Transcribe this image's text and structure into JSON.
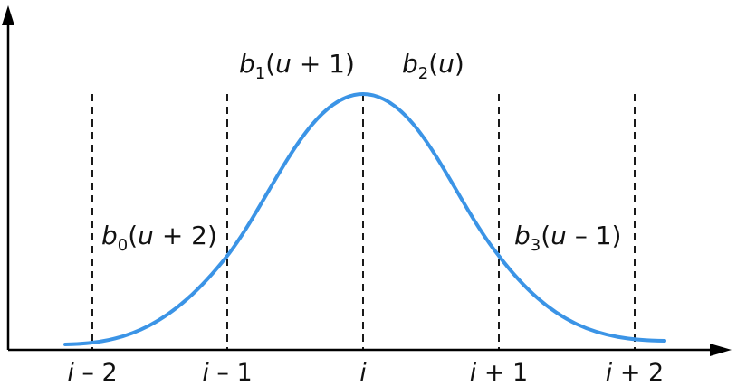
{
  "diagram": {
    "curve_color": "#3b94e6",
    "axis_color": "#000000",
    "guide_color": "#000000",
    "tick_labels": [
      {
        "var": "i",
        "rest": " – 2"
      },
      {
        "var": "i",
        "rest": " – 1"
      },
      {
        "var": "i",
        "rest": ""
      },
      {
        "var": "i",
        "rest": " + 1"
      },
      {
        "var": "i",
        "rest": " + 2"
      }
    ],
    "basis_labels": {
      "b0": {
        "base": "b",
        "sub": "0",
        "open": "(",
        "var": "u",
        "rest": " + 2)"
      },
      "b1": {
        "base": "b",
        "sub": "1",
        "open": "(",
        "var": "u",
        "rest": " + 1)"
      },
      "b2": {
        "base": "b",
        "sub": "2",
        "open": "(",
        "var": "u",
        "rest": ")"
      },
      "b3": {
        "base": "b",
        "sub": "3",
        "open": "(",
        "var": "u",
        "rest": " – 1)"
      }
    }
  }
}
